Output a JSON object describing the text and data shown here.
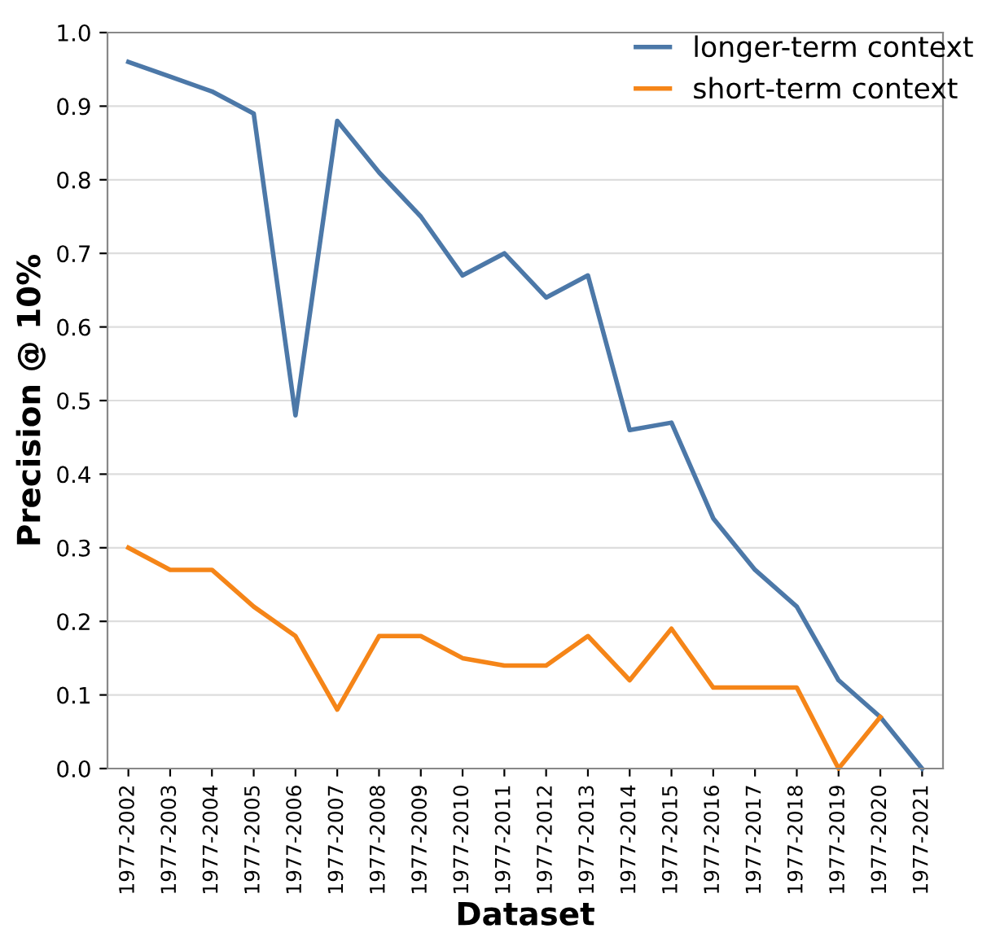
{
  "chart_data": {
    "type": "line",
    "xlabel": "Dataset",
    "ylabel": "Precision @ 10%",
    "categories": [
      "1977-2002",
      "1977-2003",
      "1977-2004",
      "1977-2005",
      "1977-2006",
      "1977-2007",
      "1977-2008",
      "1977-2009",
      "1977-2010",
      "1977-2011",
      "1977-2012",
      "1977-2013",
      "1977-2014",
      "1977-2015",
      "1977-2016",
      "1977-2017",
      "1977-2018",
      "1977-2019",
      "1977-2020",
      "1977-2021"
    ],
    "series": [
      {
        "name": "longer-term context",
        "color": "#4c78a8",
        "values": [
          0.96,
          0.94,
          0.92,
          0.89,
          0.48,
          0.88,
          0.81,
          0.75,
          0.67,
          0.7,
          0.64,
          0.67,
          0.46,
          0.47,
          0.34,
          0.27,
          0.22,
          0.12,
          0.07,
          0.0
        ]
      },
      {
        "name": "short-term context",
        "color": "#f58518",
        "values": [
          0.3,
          0.27,
          0.27,
          0.22,
          0.18,
          0.08,
          0.18,
          0.18,
          0.15,
          0.14,
          0.14,
          0.18,
          0.12,
          0.19,
          0.11,
          0.11,
          0.11,
          0.0,
          0.07,
          null
        ]
      }
    ],
    "ylim": [
      0,
      1.0
    ],
    "yticks": [
      {
        "value": 0,
        "label": "0.0"
      },
      {
        "value": 0.1,
        "label": "0.1"
      },
      {
        "value": 0.2,
        "label": "0.2"
      },
      {
        "value": 0.3,
        "label": "0.3"
      },
      {
        "value": 0.4,
        "label": "0.4"
      },
      {
        "value": 0.5,
        "label": "0.5"
      },
      {
        "value": 0.6,
        "label": "0.6"
      },
      {
        "value": 0.7,
        "label": "0.7"
      },
      {
        "value": 0.8,
        "label": "0.8"
      },
      {
        "value": 0.9,
        "label": "0.9"
      },
      {
        "value": 1.0,
        "label": "1.0"
      }
    ],
    "grid": "y",
    "legend": "top right",
    "line_style": "solid"
  }
}
